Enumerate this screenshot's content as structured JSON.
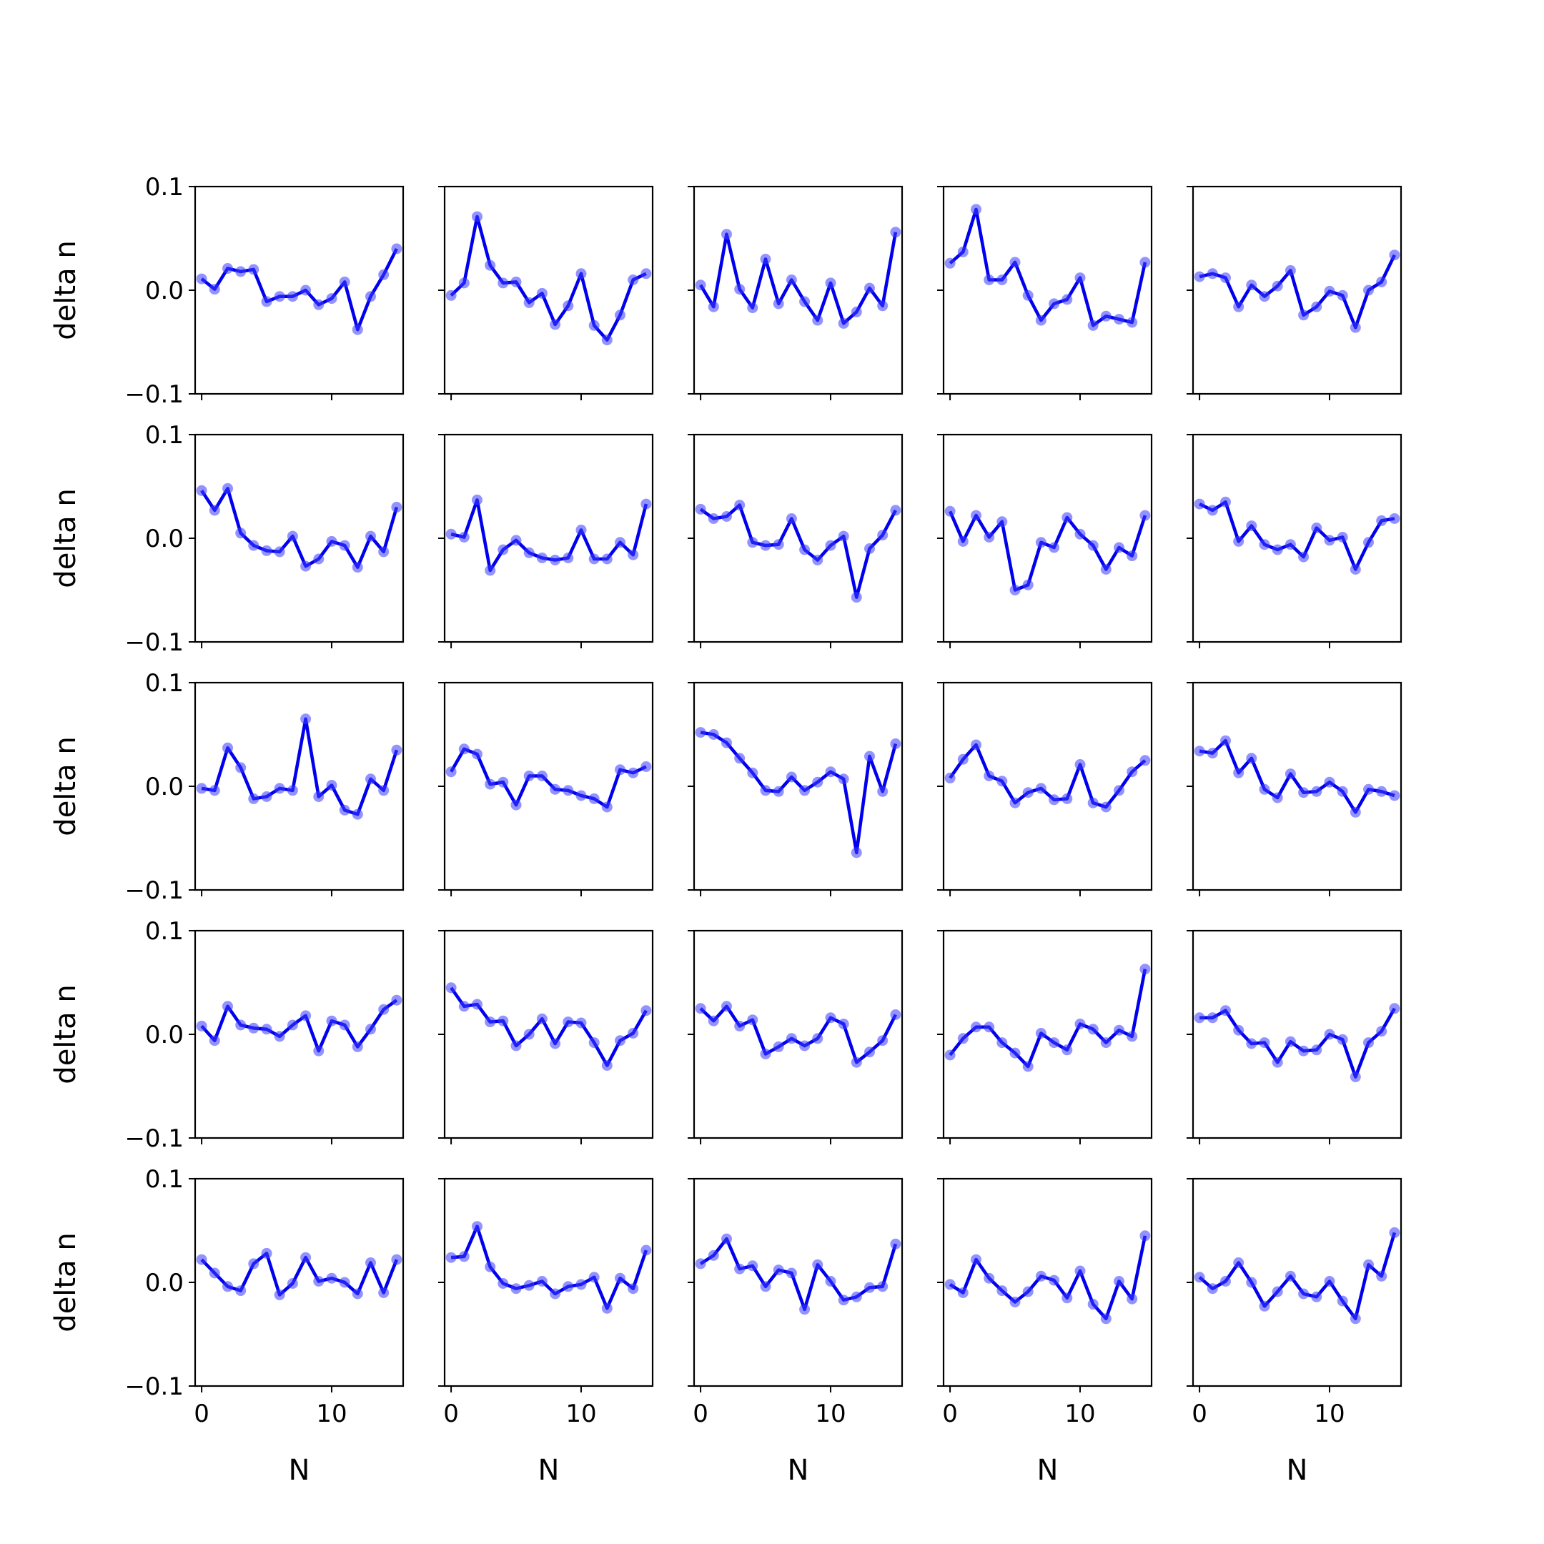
{
  "chart_data": {
    "type": "line",
    "layout": "grid 5x5",
    "xlabel": "N",
    "ylabel": "delta n",
    "ylim": [
      -0.1,
      0.1
    ],
    "xlim": [
      -0.5,
      15.5
    ],
    "yticks": [
      "0.1",
      "0.0",
      "−0.1"
    ],
    "ytick_values": [
      0.1,
      0.0,
      -0.1
    ],
    "xticks": [
      "0",
      "10"
    ],
    "xtick_values": [
      0,
      10
    ],
    "x": [
      0,
      1,
      2,
      3,
      4,
      5,
      6,
      7,
      8,
      9,
      10,
      11,
      12,
      13,
      14,
      15
    ],
    "grid": false,
    "colors": {
      "line": "#0000ee",
      "marker": "#3a3aff"
    },
    "series": [
      {
        "values": [
          0.011,
          0.001,
          0.021,
          0.018,
          0.02,
          -0.011,
          -0.006,
          -0.006,
          0.0,
          -0.014,
          -0.008,
          0.008,
          -0.038,
          -0.006,
          0.015,
          0.04
        ]
      },
      {
        "values": [
          -0.005,
          0.007,
          0.071,
          0.024,
          0.007,
          0.008,
          -0.012,
          -0.003,
          -0.033,
          -0.015,
          0.016,
          -0.034,
          -0.048,
          -0.024,
          0.01,
          0.016
        ]
      },
      {
        "values": [
          0.005,
          -0.016,
          0.054,
          0.001,
          -0.017,
          0.03,
          -0.013,
          0.01,
          -0.011,
          -0.029,
          0.007,
          -0.032,
          -0.021,
          0.002,
          -0.015,
          0.056
        ]
      },
      {
        "values": [
          0.026,
          0.037,
          0.078,
          0.01,
          0.01,
          0.027,
          -0.005,
          -0.029,
          -0.013,
          -0.009,
          0.012,
          -0.034,
          -0.025,
          -0.028,
          -0.031,
          0.027
        ]
      },
      {
        "values": [
          0.013,
          0.016,
          0.012,
          -0.016,
          0.005,
          -0.006,
          0.004,
          0.019,
          -0.024,
          -0.016,
          -0.001,
          -0.005,
          -0.036,
          0.0,
          0.008,
          0.034
        ]
      },
      {
        "values": [
          0.046,
          0.027,
          0.048,
          0.005,
          -0.007,
          -0.012,
          -0.013,
          0.002,
          -0.027,
          -0.02,
          -0.003,
          -0.007,
          -0.028,
          0.002,
          -0.013,
          0.03
        ]
      },
      {
        "values": [
          0.004,
          0.001,
          0.037,
          -0.031,
          -0.011,
          -0.002,
          -0.014,
          -0.019,
          -0.021,
          -0.019,
          0.008,
          -0.02,
          -0.02,
          -0.004,
          -0.016,
          0.033
        ]
      },
      {
        "values": [
          0.028,
          0.019,
          0.021,
          0.032,
          -0.004,
          -0.007,
          -0.006,
          0.019,
          -0.011,
          -0.021,
          -0.007,
          0.002,
          -0.057,
          -0.01,
          0.003,
          0.027
        ]
      },
      {
        "values": [
          0.026,
          -0.003,
          0.022,
          0.001,
          0.016,
          -0.05,
          -0.045,
          -0.004,
          -0.009,
          0.02,
          0.004,
          -0.007,
          -0.03,
          -0.009,
          -0.017,
          0.022
        ]
      },
      {
        "values": [
          0.033,
          0.027,
          0.035,
          -0.003,
          0.012,
          -0.006,
          -0.011,
          -0.006,
          -0.018,
          0.01,
          -0.002,
          0.001,
          -0.03,
          -0.004,
          0.017,
          0.019
        ]
      },
      {
        "values": [
          -0.002,
          -0.004,
          0.037,
          0.018,
          -0.012,
          -0.01,
          -0.002,
          -0.004,
          0.065,
          -0.01,
          0.001,
          -0.023,
          -0.027,
          0.007,
          -0.004,
          0.035
        ]
      },
      {
        "values": [
          0.014,
          0.036,
          0.031,
          0.002,
          0.004,
          -0.018,
          0.01,
          0.01,
          -0.003,
          -0.004,
          -0.009,
          -0.012,
          -0.02,
          0.016,
          0.013,
          0.019
        ]
      },
      {
        "values": [
          0.052,
          0.05,
          0.042,
          0.027,
          0.013,
          -0.004,
          -0.005,
          0.009,
          -0.004,
          0.004,
          0.014,
          0.007,
          -0.064,
          0.029,
          -0.005,
          0.041
        ]
      },
      {
        "values": [
          0.008,
          0.026,
          0.04,
          0.01,
          0.005,
          -0.016,
          -0.006,
          -0.002,
          -0.013,
          -0.012,
          0.021,
          -0.016,
          -0.02,
          -0.004,
          0.014,
          0.025
        ]
      },
      {
        "values": [
          0.034,
          0.032,
          0.044,
          0.013,
          0.027,
          -0.003,
          -0.011,
          0.012,
          -0.006,
          -0.005,
          0.004,
          -0.005,
          -0.025,
          -0.003,
          -0.005,
          -0.009
        ]
      },
      {
        "values": [
          0.008,
          -0.006,
          0.027,
          0.009,
          0.006,
          0.005,
          -0.002,
          0.009,
          0.018,
          -0.016,
          0.013,
          0.009,
          -0.012,
          0.005,
          0.024,
          0.033
        ]
      },
      {
        "values": [
          0.045,
          0.027,
          0.029,
          0.012,
          0.013,
          -0.011,
          0.0,
          0.015,
          -0.009,
          0.012,
          0.011,
          -0.008,
          -0.03,
          -0.006,
          0.001,
          0.023
        ]
      },
      {
        "values": [
          0.025,
          0.013,
          0.027,
          0.008,
          0.014,
          -0.019,
          -0.012,
          -0.004,
          -0.011,
          -0.004,
          0.016,
          0.01,
          -0.027,
          -0.017,
          -0.006,
          0.019
        ]
      },
      {
        "values": [
          -0.02,
          -0.004,
          0.007,
          0.007,
          -0.008,
          -0.018,
          -0.031,
          0.001,
          -0.008,
          -0.015,
          0.01,
          0.005,
          -0.008,
          0.004,
          -0.002,
          0.063
        ]
      },
      {
        "values": [
          0.016,
          0.016,
          0.023,
          0.004,
          -0.009,
          -0.008,
          -0.027,
          -0.007,
          -0.016,
          -0.015,
          0.0,
          -0.005,
          -0.041,
          -0.008,
          0.003,
          0.025
        ]
      },
      {
        "values": [
          0.022,
          0.009,
          -0.004,
          -0.008,
          0.018,
          0.028,
          -0.012,
          -0.001,
          0.024,
          0.001,
          0.004,
          0.0,
          -0.011,
          0.019,
          -0.01,
          0.022
        ]
      },
      {
        "values": [
          0.024,
          0.025,
          0.054,
          0.015,
          -0.001,
          -0.006,
          -0.003,
          0.001,
          -0.011,
          -0.004,
          -0.002,
          0.005,
          -0.025,
          0.004,
          -0.006,
          0.031
        ]
      },
      {
        "values": [
          0.018,
          0.026,
          0.042,
          0.013,
          0.016,
          -0.004,
          0.012,
          0.009,
          -0.026,
          0.017,
          0.001,
          -0.017,
          -0.014,
          -0.005,
          -0.004,
          0.037
        ]
      },
      {
        "values": [
          -0.002,
          -0.01,
          0.022,
          0.004,
          -0.008,
          -0.019,
          -0.009,
          0.006,
          0.002,
          -0.015,
          0.011,
          -0.021,
          -0.035,
          0.001,
          -0.016,
          0.045
        ]
      },
      {
        "values": [
          0.005,
          -0.006,
          0.001,
          0.019,
          0.0,
          -0.023,
          -0.009,
          0.006,
          -0.011,
          -0.014,
          0.001,
          -0.018,
          -0.035,
          0.017,
          0.006,
          0.048
        ]
      }
    ]
  }
}
